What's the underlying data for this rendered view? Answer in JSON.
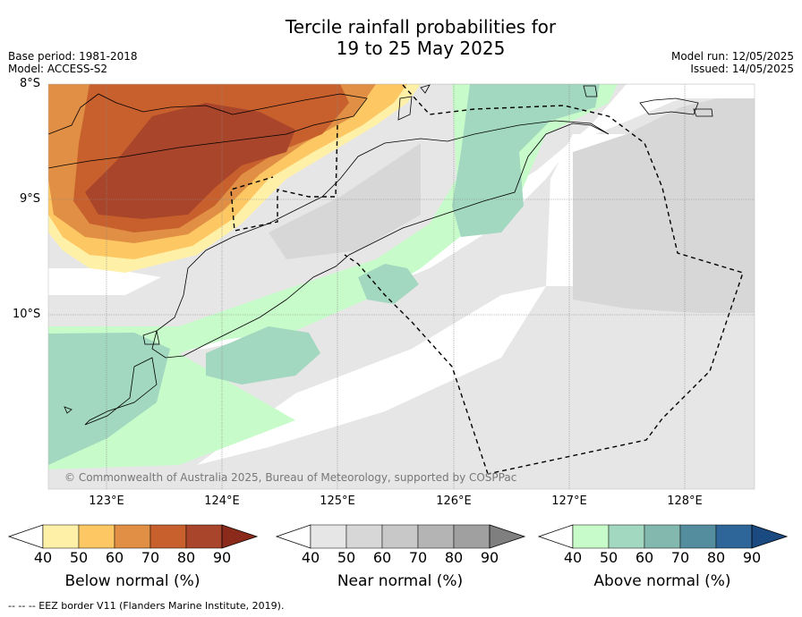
{
  "title_line1": "Tercile rainfall probabilities for",
  "title_line2": "19 to 25 May 2025",
  "base_period": "Base period: 1981-2018",
  "model": "Model: ACCESS-S2",
  "model_run": "Model run: 12/05/2025",
  "issued": "Issued: 14/05/2025",
  "copyright": "© Commonwealth of Australia 2025, Bureau of Meteorology, supported by COSPPac",
  "lat_labels": [
    "8°S",
    "9°S",
    "10°S"
  ],
  "lon_labels": [
    "123°E",
    "124°E",
    "125°E",
    "126°E",
    "127°E",
    "128°E"
  ],
  "colorbars": [
    {
      "title": "Below normal (%)",
      "ticks": [
        "40",
        "50",
        "60",
        "70",
        "80",
        "90"
      ],
      "colors": [
        "#fff0a8",
        "#fdc863",
        "#e08f44",
        "#c8602e",
        "#a8452a",
        "#8b2a1a"
      ]
    },
    {
      "title": "Near normal (%)",
      "ticks": [
        "40",
        "50",
        "60",
        "70",
        "80",
        "90"
      ],
      "colors": [
        "#e6e6e6",
        "#d7d7d7",
        "#c8c8c8",
        "#b4b4b4",
        "#a0a0a0",
        "#7f7f7f"
      ]
    },
    {
      "title": "Above normal (%)",
      "ticks": [
        "40",
        "50",
        "60",
        "70",
        "80",
        "90"
      ],
      "colors": [
        "#c8fbca",
        "#a2d7c0",
        "#82b8ae",
        "#548e9e",
        "#2f6699",
        "#1a4a80"
      ]
    }
  ],
  "footer": "--  --  -- EEZ border V11 (Flanders Marine Institute, 2019)."
}
